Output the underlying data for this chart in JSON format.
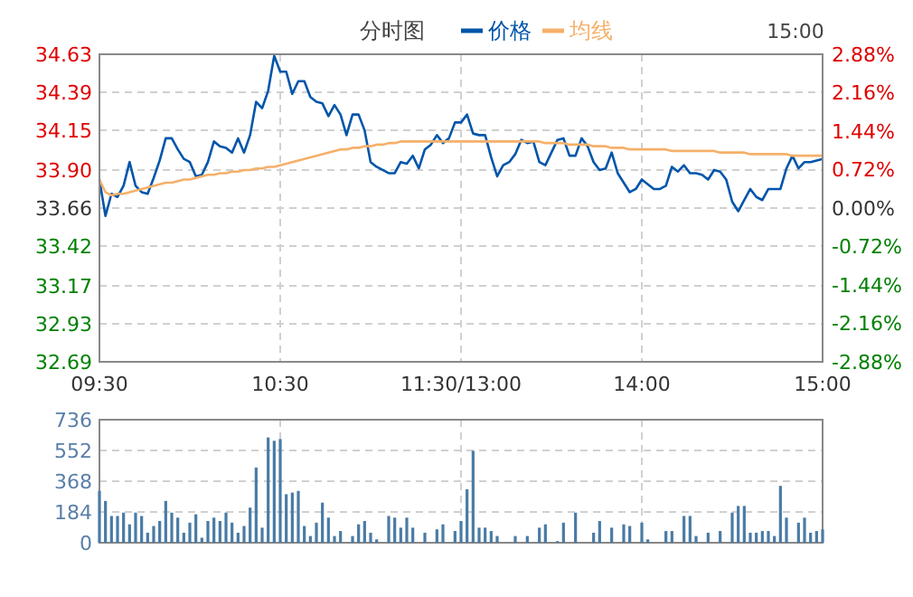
{
  "chart_data": [
    {
      "type": "line",
      "title": "分时图",
      "annotations": [
        "15:00"
      ],
      "legend": "top",
      "grid": true,
      "line_style": "solid",
      "marker": "none",
      "categories": [
        "09:30",
        null,
        null,
        null,
        null,
        null,
        null,
        null,
        null,
        null,
        null,
        null,
        null,
        null,
        null,
        null,
        null,
        null,
        null,
        null,
        null,
        null,
        null,
        null,
        null,
        null,
        null,
        null,
        null,
        null,
        "10:30",
        null,
        null,
        null,
        null,
        null,
        null,
        null,
        null,
        null,
        null,
        null,
        null,
        null,
        null,
        null,
        null,
        null,
        null,
        null,
        null,
        null,
        null,
        null,
        null,
        null,
        null,
        null,
        null,
        null,
        "11:30/13:00",
        null,
        null,
        null,
        null,
        null,
        null,
        null,
        null,
        null,
        null,
        null,
        null,
        null,
        null,
        null,
        null,
        null,
        null,
        null,
        null,
        null,
        null,
        null,
        null,
        null,
        null,
        null,
        null,
        null,
        "14:00",
        null,
        null,
        null,
        null,
        null,
        null,
        null,
        null,
        null,
        null,
        null,
        null,
        null,
        null,
        null,
        null,
        null,
        null,
        null,
        null,
        null,
        null,
        null,
        null,
        null,
        null,
        null,
        null,
        null,
        "15:00"
      ],
      "ylim": [
        32.69,
        34.63
      ],
      "yticks": [
        32.69,
        32.93,
        33.17,
        33.42,
        33.66,
        {
          "value": 33.9,
          "label": "33.90"
        },
        34.15,
        34.39,
        34.63
      ],
      "y2lim": [
        -2.88,
        2.88
      ],
      "y2ticks": [
        {
          "value": -2.88,
          "label": "-2.88%"
        },
        {
          "value": -2.16,
          "label": "-2.16%"
        },
        {
          "value": -1.44,
          "label": "-1.44%"
        },
        {
          "value": -0.72,
          "label": "-0.72%"
        },
        {
          "value": 0,
          "label": "0.00%"
        },
        {
          "value": 0.72,
          "label": "0.72%"
        },
        {
          "value": 1.44,
          "label": "1.44%"
        },
        {
          "value": 2.16,
          "label": "2.16%"
        },
        {
          "value": 2.88,
          "label": "2.88%"
        }
      ],
      "series": [
        {
          "name": "价格",
          "color": "#0055aa",
          "values": [
            33.84,
            33.61,
            33.75,
            33.73,
            33.8,
            33.95,
            33.8,
            33.76,
            33.75,
            33.85,
            33.96,
            34.1,
            34.1,
            34.03,
            33.97,
            33.95,
            33.86,
            33.87,
            33.95,
            34.08,
            34.05,
            34.04,
            34.01,
            34.1,
            34.01,
            34.12,
            34.33,
            34.29,
            34.4,
            34.62,
            34.52,
            34.52,
            34.38,
            34.46,
            34.46,
            34.36,
            34.33,
            34.32,
            34.24,
            34.31,
            34.25,
            34.12,
            34.25,
            34.25,
            34.15,
            33.95,
            33.92,
            33.9,
            33.88,
            33.88,
            33.95,
            33.94,
            33.99,
            33.91,
            34.03,
            34.06,
            34.12,
            34.07,
            34.1,
            34.2,
            34.2,
            34.25,
            34.13,
            34.12,
            34.12,
            33.98,
            33.86,
            33.93,
            33.95,
            34.0,
            34.09,
            34.07,
            34.08,
            33.95,
            33.93,
            34.01,
            34.09,
            34.1,
            33.99,
            33.99,
            34.1,
            34.05,
            33.95,
            33.9,
            33.91,
            34.01,
            33.88,
            33.82,
            33.76,
            33.78,
            33.84,
            33.81,
            33.78,
            33.78,
            33.8,
            33.92,
            33.89,
            33.93,
            33.88,
            33.88,
            33.87,
            33.84,
            33.9,
            33.89,
            33.84,
            33.7,
            33.64,
            33.71,
            33.78,
            33.73,
            33.71,
            33.78,
            33.78,
            33.78,
            33.91,
            33.99,
            33.91,
            33.95,
            33.95,
            33.96,
            33.97
          ]
        },
        {
          "name": "均线",
          "color": "#f5b06a",
          "values": [
            33.84,
            33.76,
            33.74,
            33.75,
            33.75,
            33.76,
            33.77,
            33.78,
            33.79,
            33.8,
            33.81,
            33.82,
            33.82,
            33.83,
            33.84,
            33.84,
            33.85,
            33.86,
            33.87,
            33.87,
            33.88,
            33.88,
            33.89,
            33.89,
            33.9,
            33.9,
            33.91,
            33.91,
            33.92,
            33.92,
            33.93,
            33.94,
            33.95,
            33.96,
            33.97,
            33.98,
            33.99,
            34.0,
            34.01,
            34.02,
            34.03,
            34.03,
            34.04,
            34.04,
            34.05,
            34.05,
            34.06,
            34.06,
            34.07,
            34.07,
            34.08,
            34.08,
            34.08,
            34.08,
            34.08,
            34.08,
            34.08,
            34.08,
            34.08,
            34.08,
            34.08,
            34.08,
            34.08,
            34.08,
            34.08,
            34.08,
            34.08,
            34.08,
            34.08,
            34.08,
            34.08,
            34.08,
            34.08,
            34.08,
            34.07,
            34.07,
            34.07,
            34.07,
            34.06,
            34.06,
            34.06,
            34.06,
            34.05,
            34.05,
            34.05,
            34.04,
            34.04,
            34.04,
            34.03,
            34.03,
            34.03,
            34.03,
            34.03,
            34.03,
            34.03,
            34.02,
            34.02,
            34.02,
            34.02,
            34.02,
            34.02,
            34.02,
            34.02,
            34.01,
            34.01,
            34.01,
            34.01,
            34.01,
            34.0,
            34.0,
            34.0,
            34.0,
            34.0,
            34.0,
            34.0,
            33.99,
            33.99,
            33.99,
            33.99,
            33.99,
            33.99
          ]
        }
      ]
    },
    {
      "type": "bar",
      "color": "#4a7ba5",
      "grid": true,
      "categories": [
        null,
        null,
        null,
        null,
        null,
        null,
        null,
        null,
        null,
        null,
        null,
        null,
        null,
        null,
        null,
        null,
        null,
        null,
        null,
        null,
        null,
        null,
        null,
        null,
        null,
        null,
        null,
        null,
        null,
        null,
        null,
        null,
        null,
        null,
        null,
        null,
        null,
        null,
        null,
        null,
        null,
        null,
        null,
        null,
        null,
        null,
        null,
        null,
        null,
        null,
        null,
        null,
        null,
        null,
        null,
        null,
        null,
        null,
        null,
        null,
        null,
        null,
        null,
        null,
        null,
        null,
        null,
        null,
        null,
        null,
        null,
        null,
        null,
        null,
        null,
        null,
        null,
        null,
        null,
        null,
        null,
        null,
        null,
        null,
        null,
        null,
        null,
        null,
        null,
        null,
        null,
        null,
        null,
        null,
        null,
        null,
        null,
        null,
        null,
        null,
        null,
        null,
        null,
        null,
        null,
        null,
        null,
        null,
        null,
        null,
        null,
        null,
        null,
        null,
        null,
        null,
        null,
        null,
        null,
        null,
        null
      ],
      "ylim": [
        0,
        736
      ],
      "yticks": [
        0,
        184,
        368,
        552,
        736
      ],
      "values": [
        310,
        250,
        160,
        160,
        180,
        110,
        180,
        160,
        60,
        100,
        130,
        250,
        180,
        150,
        60,
        120,
        170,
        30,
        130,
        150,
        130,
        180,
        120,
        60,
        100,
        210,
        450,
        90,
        630,
        610,
        620,
        290,
        300,
        310,
        100,
        40,
        120,
        240,
        150,
        40,
        70,
        null,
        40,
        110,
        130,
        60,
        20,
        null,
        160,
        150,
        90,
        150,
        90,
        null,
        60,
        null,
        80,
        110,
        null,
        70,
        130,
        320,
        550,
        90,
        90,
        70,
        40,
        null,
        null,
        40,
        null,
        40,
        null,
        90,
        110,
        null,
        10,
        120,
        null,
        180,
        null,
        null,
        60,
        130,
        null,
        90,
        null,
        110,
        100,
        null,
        120,
        20,
        null,
        null,
        70,
        70,
        null,
        160,
        160,
        40,
        null,
        60,
        null,
        70,
        null,
        180,
        220,
        220,
        60,
        60,
        70,
        70,
        40,
        340,
        150,
        null,
        120,
        150,
        60,
        70,
        80
      ]
    }
  ]
}
